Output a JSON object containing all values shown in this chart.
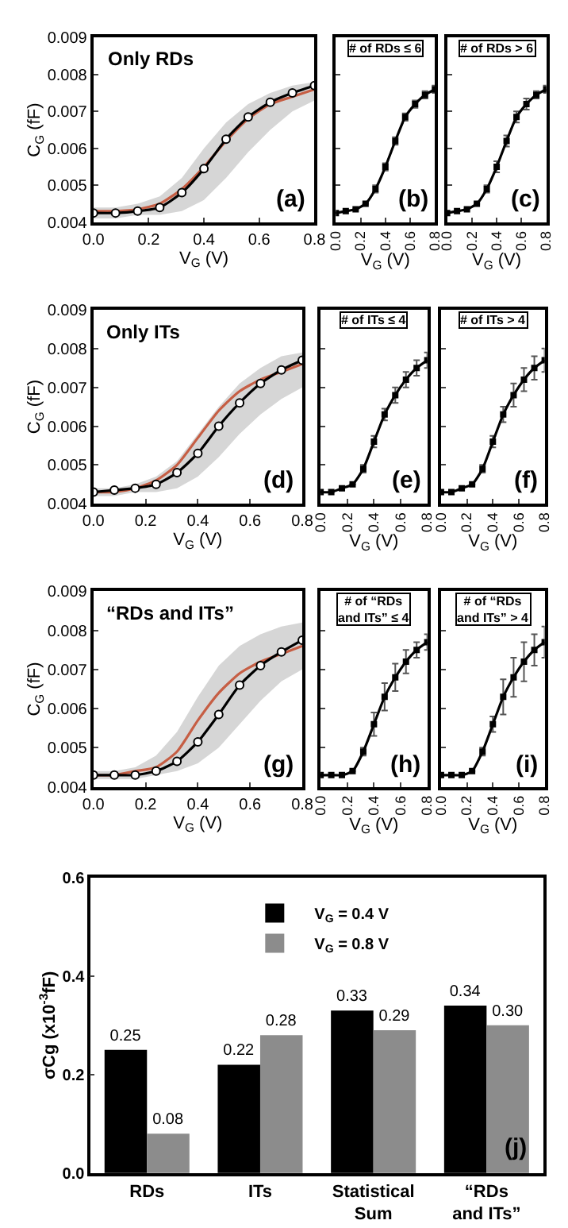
{
  "chart_data": [
    {
      "type": "line",
      "title": "Only RDs",
      "xlabel": "V$_{G}$ (V)",
      "ylabel": "C$_{G}$ (fF)",
      "annotations": [
        "(a)"
      ],
      "x": [
        0,
        0.08,
        0.16,
        0.24,
        0.32,
        0.4,
        0.48,
        0.56,
        0.64,
        0.72,
        0.8
      ],
      "xlim": [
        0,
        0.8
      ],
      "ylim": [
        0.004,
        0.009
      ],
      "xticks": [
        {
          "value": 0,
          "label": "0.0"
        },
        {
          "value": 0.2,
          "label": "0.2"
        },
        {
          "value": 0.4,
          "label": "0.4"
        },
        {
          "value": 0.6,
          "label": "0.6"
        },
        {
          "value": 0.8,
          "label": "0.8"
        }
      ],
      "yticks": [
        0.004,
        0.005,
        0.006,
        0.007,
        0.008,
        0.009
      ],
      "series": [
        {
          "color": "#e8532f",
          "marker": "none",
          "values": [
            0.0043,
            0.0043,
            0.00435,
            0.0045,
            0.0049,
            0.0055,
            0.0062,
            0.0068,
            0.0072,
            0.0074,
            0.0076
          ]
        },
        {
          "color": "#000000",
          "marker": "circle",
          "values": [
            0.00425,
            0.00425,
            0.0043,
            0.0044,
            0.0048,
            0.00545,
            0.00625,
            0.00685,
            0.00725,
            0.0075,
            0.0077
          ],
          "lower": [
            0.0041,
            0.0041,
            0.0042,
            0.0042,
            0.0043,
            0.0046,
            0.0052,
            0.0059,
            0.0065,
            0.007,
            0.0073
          ],
          "upper": [
            0.0044,
            0.0044,
            0.0045,
            0.0047,
            0.0052,
            0.006,
            0.0067,
            0.0072,
            0.0075,
            0.0077,
            0.0078
          ]
        }
      ]
    },
    {
      "type": "line",
      "title": "# of RDs ≤ 6",
      "xlabel": "V$_{G}$ (V)",
      "annotations": [
        "(b)"
      ],
      "tick_labels": "x",
      "marker": "square",
      "x": [
        0,
        0.08,
        0.16,
        0.24,
        0.32,
        0.4,
        0.48,
        0.56,
        0.64,
        0.72,
        0.8
      ],
      "xlim": [
        0,
        0.8
      ],
      "ylim": [
        0.004,
        0.009
      ],
      "xticks": [
        {
          "value": 0,
          "label": "0.0"
        },
        {
          "value": 0.2,
          "label": "0.2"
        },
        {
          "value": 0.4,
          "label": "0.4"
        },
        {
          "value": 0.6,
          "label": "0.6"
        },
        {
          "value": 0.8,
          "label": "0.8"
        }
      ],
      "yticks": [
        0.004,
        0.005,
        0.006,
        0.007,
        0.008,
        0.009
      ],
      "series": [
        {
          "color": "#000000",
          "values": [
            0.00425,
            0.0043,
            0.00435,
            0.0045,
            0.0049,
            0.0055,
            0.0062,
            0.00685,
            0.0072,
            0.00745,
            0.0076
          ],
          "errors": [
            null,
            null,
            null,
            null,
            0.0001,
            0.0001,
            0.0001,
            0.0001,
            0.0001,
            0.0001,
            0.0001
          ]
        }
      ]
    },
    {
      "type": "line",
      "title": "# of RDs > 6",
      "xlabel": "V$_{G}$ (V)",
      "annotations": [
        "(c)"
      ],
      "tick_labels": "x",
      "marker": "square",
      "x": [
        0,
        0.08,
        0.16,
        0.24,
        0.32,
        0.4,
        0.48,
        0.56,
        0.64,
        0.72,
        0.8
      ],
      "xlim": [
        0,
        0.8
      ],
      "ylim": [
        0.004,
        0.009
      ],
      "xticks": [
        {
          "value": 0,
          "label": "0.0"
        },
        {
          "value": 0.2,
          "label": "0.2"
        },
        {
          "value": 0.4,
          "label": "0.4"
        },
        {
          "value": 0.6,
          "label": "0.6"
        },
        {
          "value": 0.8,
          "label": "0.8"
        }
      ],
      "yticks": [
        0.004,
        0.005,
        0.006,
        0.007,
        0.008,
        0.009
      ],
      "series": [
        {
          "color": "#000000",
          "values": [
            0.00425,
            0.0043,
            0.00435,
            0.0045,
            0.0049,
            0.0055,
            0.0062,
            0.00685,
            0.0072,
            0.00745,
            0.0076
          ],
          "errors": [
            null,
            null,
            null,
            null,
            0.0001,
            0.00015,
            0.00015,
            0.00015,
            0.00015,
            0.0001,
            0.0001
          ]
        }
      ]
    },
    {
      "type": "line",
      "title": "Only ITs",
      "xlabel": "V$_{G}$ (V)",
      "ylabel": "C$_{G}$ (fF)",
      "annotations": [
        "(d)"
      ],
      "x": [
        0,
        0.08,
        0.16,
        0.24,
        0.32,
        0.4,
        0.48,
        0.56,
        0.64,
        0.72,
        0.8
      ],
      "xlim": [
        0,
        0.8
      ],
      "ylim": [
        0.004,
        0.009
      ],
      "xticks": [
        {
          "value": 0,
          "label": "0.0"
        },
        {
          "value": 0.2,
          "label": "0.2"
        },
        {
          "value": 0.4,
          "label": "0.4"
        },
        {
          "value": 0.6,
          "label": "0.6"
        },
        {
          "value": 0.8,
          "label": "0.8"
        }
      ],
      "yticks": [
        0.004,
        0.005,
        0.006,
        0.007,
        0.008,
        0.009
      ],
      "series": [
        {
          "color": "#e8532f",
          "marker": "none",
          "values": [
            0.0043,
            0.0043,
            0.0044,
            0.0046,
            0.005,
            0.0057,
            0.0064,
            0.0069,
            0.0072,
            0.0074,
            0.0076
          ]
        },
        {
          "color": "#000000",
          "marker": "circle",
          "values": [
            0.0043,
            0.00435,
            0.0044,
            0.0045,
            0.0048,
            0.0053,
            0.006,
            0.0066,
            0.0071,
            0.00745,
            0.0077
          ],
          "lower": [
            0.0042,
            0.0042,
            0.0043,
            0.0043,
            0.0044,
            0.0047,
            0.0052,
            0.0058,
            0.0063,
            0.0067,
            0.007
          ],
          "upper": [
            0.0044,
            0.0044,
            0.0045,
            0.0047,
            0.0051,
            0.0058,
            0.0065,
            0.0071,
            0.0075,
            0.0078,
            0.0079
          ]
        }
      ]
    },
    {
      "type": "line",
      "title": "# of ITs ≤ 4",
      "xlabel": "V$_{G}$ (V)",
      "annotations": [
        "(e)"
      ],
      "tick_labels": "x",
      "marker": "square",
      "x": [
        0,
        0.08,
        0.16,
        0.24,
        0.32,
        0.4,
        0.48,
        0.56,
        0.64,
        0.72,
        0.8
      ],
      "xlim": [
        0,
        0.8
      ],
      "ylim": [
        0.004,
        0.009
      ],
      "xticks": [
        {
          "value": 0,
          "label": "0.0"
        },
        {
          "value": 0.2,
          "label": "0.2"
        },
        {
          "value": 0.4,
          "label": "0.4"
        },
        {
          "value": 0.6,
          "label": "0.6"
        },
        {
          "value": 0.8,
          "label": "0.8"
        }
      ],
      "yticks": [
        0.004,
        0.005,
        0.006,
        0.007,
        0.008,
        0.009
      ],
      "series": [
        {
          "color": "#000000",
          "values": [
            0.0043,
            0.0043,
            0.0044,
            0.0045,
            0.0049,
            0.0056,
            0.0063,
            0.0068,
            0.0072,
            0.0075,
            0.0077
          ],
          "errors": [
            null,
            null,
            null,
            null,
            0.0001,
            0.00015,
            0.00015,
            0.0002,
            0.0002,
            0.0002,
            0.0002
          ]
        }
      ]
    },
    {
      "type": "line",
      "title": "# of ITs > 4",
      "xlabel": "V$_{G}$ (V)",
      "annotations": [
        "(f)"
      ],
      "tick_labels": "x",
      "marker": "square",
      "x": [
        0,
        0.08,
        0.16,
        0.24,
        0.32,
        0.4,
        0.48,
        0.56,
        0.64,
        0.72,
        0.8
      ],
      "xlim": [
        0,
        0.8
      ],
      "ylim": [
        0.004,
        0.009
      ],
      "xticks": [
        {
          "value": 0,
          "label": "0.0"
        },
        {
          "value": 0.2,
          "label": "0.2"
        },
        {
          "value": 0.4,
          "label": "0.4"
        },
        {
          "value": 0.6,
          "label": "0.6"
        },
        {
          "value": 0.8,
          "label": "0.8"
        }
      ],
      "yticks": [
        0.004,
        0.005,
        0.006,
        0.007,
        0.008,
        0.009
      ],
      "series": [
        {
          "color": "#000000",
          "values": [
            0.0043,
            0.0043,
            0.0044,
            0.0045,
            0.0049,
            0.0056,
            0.0063,
            0.0068,
            0.0072,
            0.0075,
            0.0077
          ],
          "errors": [
            null,
            null,
            null,
            null,
            0.0001,
            0.00015,
            0.0002,
            0.0003,
            0.0003,
            0.0003,
            0.0003
          ]
        }
      ]
    },
    {
      "type": "line",
      "title": "“RDs and ITs”",
      "xlabel": "V$_{G}$ (V)",
      "ylabel": "C$_{G}$ (fF)",
      "annotations": [
        "(g)"
      ],
      "x": [
        0,
        0.08,
        0.16,
        0.24,
        0.32,
        0.4,
        0.48,
        0.56,
        0.64,
        0.72,
        0.8
      ],
      "xlim": [
        0,
        0.8
      ],
      "ylim": [
        0.004,
        0.009
      ],
      "xticks": [
        {
          "value": 0,
          "label": "0.0"
        },
        {
          "value": 0.2,
          "label": "0.2"
        },
        {
          "value": 0.4,
          "label": "0.4"
        },
        {
          "value": 0.6,
          "label": "0.6"
        },
        {
          "value": 0.8,
          "label": "0.8"
        }
      ],
      "yticks": [
        0.004,
        0.005,
        0.006,
        0.007,
        0.008,
        0.009
      ],
      "series": [
        {
          "color": "#e8532f",
          "marker": "none",
          "values": [
            0.0043,
            0.0043,
            0.0044,
            0.0045,
            0.0049,
            0.0057,
            0.0064,
            0.0069,
            0.0072,
            0.0074,
            0.0076
          ]
        },
        {
          "color": "#000000",
          "marker": "circle",
          "values": [
            0.0043,
            0.0043,
            0.0043,
            0.0044,
            0.00465,
            0.00515,
            0.00585,
            0.0066,
            0.0071,
            0.00745,
            0.00775
          ],
          "lower": [
            0.0042,
            0.0042,
            0.0042,
            0.0043,
            0.0044,
            0.0046,
            0.005,
            0.0056,
            0.0062,
            0.0067,
            0.007
          ],
          "upper": [
            0.0044,
            0.0044,
            0.0045,
            0.0048,
            0.0054,
            0.0063,
            0.0071,
            0.0076,
            0.0079,
            0.0081,
            0.0082
          ]
        }
      ]
    },
    {
      "type": "line",
      "title": "# of “RDs\nand ITs” ≤ 4",
      "xlabel": "V$_{G}$ (V)",
      "annotations": [
        "(h)"
      ],
      "tick_labels": "x",
      "marker": "square",
      "x": [
        0,
        0.08,
        0.16,
        0.24,
        0.32,
        0.4,
        0.48,
        0.56,
        0.64,
        0.72,
        0.8
      ],
      "xlim": [
        0,
        0.8
      ],
      "ylim": [
        0.004,
        0.009
      ],
      "xticks": [
        {
          "value": 0,
          "label": "0.0"
        },
        {
          "value": 0.2,
          "label": "0.2"
        },
        {
          "value": 0.4,
          "label": "0.4"
        },
        {
          "value": 0.6,
          "label": "0.6"
        },
        {
          "value": 0.8,
          "label": "0.8"
        }
      ],
      "yticks": [
        0.004,
        0.005,
        0.006,
        0.007,
        0.008,
        0.009
      ],
      "series": [
        {
          "color": "#000000",
          "values": [
            0.0043,
            0.0043,
            0.0043,
            0.0044,
            0.0049,
            0.0056,
            0.0063,
            0.0068,
            0.0072,
            0.0075,
            0.0077
          ],
          "errors": [
            null,
            null,
            null,
            null,
            0.0001,
            0.0003,
            0.00035,
            0.00035,
            0.0003,
            0.0002,
            0.0002
          ]
        }
      ]
    },
    {
      "type": "line",
      "title": "# of “RDs\nand ITs” > 4",
      "xlabel": "V$_{G}$ (V)",
      "annotations": [
        "(i)"
      ],
      "tick_labels": "x",
      "marker": "square",
      "x": [
        0,
        0.08,
        0.16,
        0.24,
        0.32,
        0.4,
        0.48,
        0.56,
        0.64,
        0.72,
        0.8
      ],
      "xlim": [
        0,
        0.8
      ],
      "ylim": [
        0.004,
        0.009
      ],
      "xticks": [
        {
          "value": 0,
          "label": "0.0"
        },
        {
          "value": 0.2,
          "label": "0.2"
        },
        {
          "value": 0.4,
          "label": "0.4"
        },
        {
          "value": 0.6,
          "label": "0.6"
        },
        {
          "value": 0.8,
          "label": "0.8"
        }
      ],
      "yticks": [
        0.004,
        0.005,
        0.006,
        0.007,
        0.008,
        0.009
      ],
      "series": [
        {
          "color": "#000000",
          "values": [
            0.0043,
            0.0043,
            0.0043,
            0.0044,
            0.0049,
            0.0056,
            0.0063,
            0.0068,
            0.0072,
            0.0075,
            0.0077
          ],
          "errors": [
            null,
            null,
            null,
            null,
            0.0001,
            0.0002,
            0.00045,
            0.0005,
            0.0005,
            0.0004,
            0.0004
          ]
        }
      ]
    },
    {
      "type": "bar",
      "ylabel": "σCg (x10$^{-3}$fF)",
      "annotations": [
        "(j)"
      ],
      "legend": "top",
      "categories": [
        "RDs",
        "ITs",
        "Statistical\nSum",
        "“RDs\nand ITs”"
      ],
      "ylim": [
        0,
        0.6
      ],
      "yticks": [
        {
          "value": 0,
          "label": "0.0"
        },
        {
          "value": 0.2,
          "label": "0.2"
        },
        {
          "value": 0.4,
          "label": "0.4"
        },
        {
          "value": 0.6,
          "label": "0.6"
        }
      ],
      "series": [
        {
          "name": "V$_{G}$ = 0.4 V",
          "color": "#000000",
          "values": [
            0.25,
            0.22,
            0.33,
            0.34
          ],
          "value_labels": [
            "0.25",
            "0.22",
            "0.33",
            "0.34"
          ]
        },
        {
          "name": "V$_{G}$ = 0.8 V",
          "color": "#8c8c8c",
          "values": [
            0.08,
            0.28,
            0.29,
            0.3
          ],
          "value_labels": [
            "0.08",
            "0.28",
            "0.29",
            "0.30"
          ]
        }
      ]
    }
  ]
}
